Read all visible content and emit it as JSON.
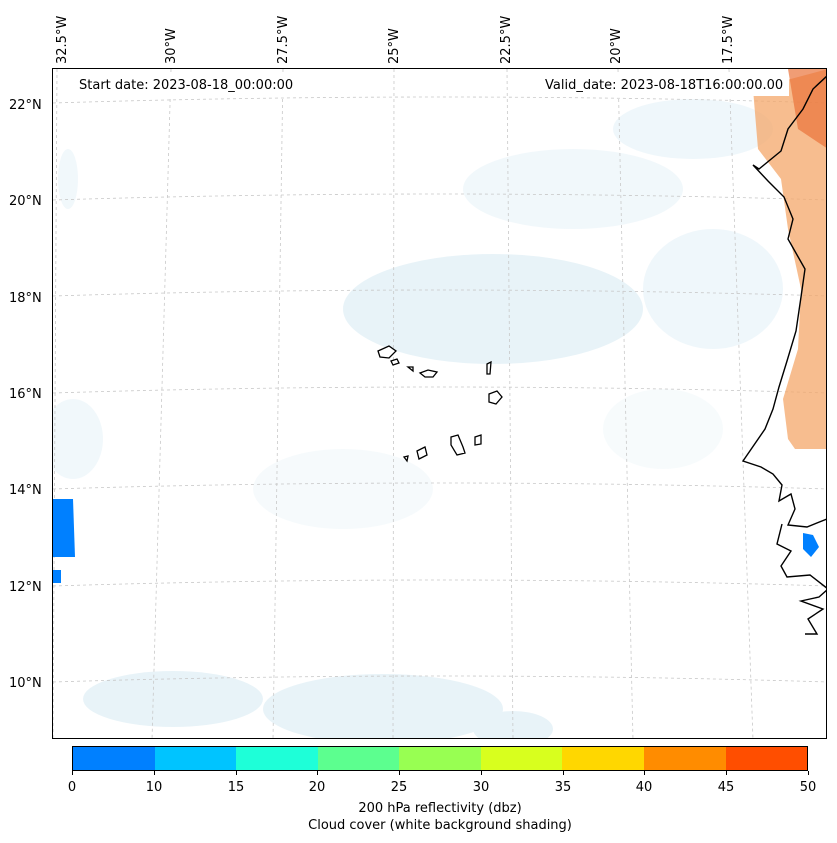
{
  "map": {
    "start_date": "Start date: 2023-08-18_00:00:00",
    "valid_date": "Valid_date: 2023-08-18T16:00:00.00",
    "lon_labels": [
      "32.5°W",
      "30°W",
      "27.5°W",
      "25°W",
      "22.5°W",
      "20°W",
      "17.5°W"
    ],
    "lat_labels": [
      "22°N",
      "20°N",
      "18°N",
      "16°N",
      "14°N",
      "12°N",
      "10°N"
    ],
    "features": {
      "islands": "Cape Verde islands",
      "coastline": "West African coast",
      "reflectivity_cells": [
        "west edge cell near 13°N",
        "east cell near 13°N"
      ]
    },
    "colors": {
      "cloud_shading": "#d6eaf3",
      "land_warm": "#f4a76a",
      "coast": "#000000",
      "grid": "#c8c8c8"
    }
  },
  "colorbar": {
    "colors": [
      "#0080ff",
      "#00c4ff",
      "#1effd8",
      "#5cff8f",
      "#98ff52",
      "#d8ff1e",
      "#ffd700",
      "#ff8c00",
      "#ff4e00"
    ],
    "ticks": [
      "0",
      "10",
      "15",
      "20",
      "25",
      "30",
      "35",
      "40",
      "45",
      "50"
    ],
    "label_line1": "200 hPa reflectivity (dbz)",
    "label_line2": "Cloud cover (white background shading)"
  }
}
